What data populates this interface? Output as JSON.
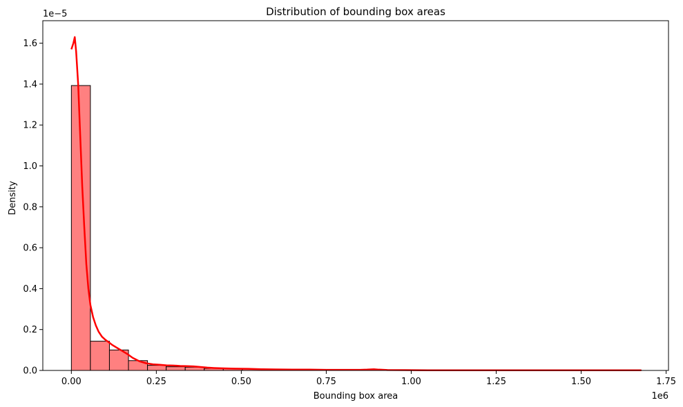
{
  "chart_data": {
    "type": "bar",
    "title": "Distribution of bounding box areas",
    "xlabel": "Bounding box area",
    "ylabel": "Density",
    "x_offset_text": "1e6",
    "y_offset_text": "1e−5",
    "xlim": [
      -0.084,
      1.757
    ],
    "ylim": [
      0,
      1.71
    ],
    "grid": false,
    "xticks": [
      0.0,
      0.25,
      0.5,
      0.75,
      1.0,
      1.25,
      1.5,
      1.75
    ],
    "xtick_labels": [
      "0.00",
      "0.25",
      "0.50",
      "0.75",
      "1.00",
      "1.25",
      "1.50",
      "1.75"
    ],
    "yticks": [
      0.0,
      0.2,
      0.4,
      0.6,
      0.8,
      1.0,
      1.2,
      1.4,
      1.6
    ],
    "ytick_labels": [
      "0.0",
      "0.2",
      "0.4",
      "0.6",
      "0.8",
      "1.0",
      "1.2",
      "1.4",
      "1.6"
    ],
    "bar_fill": "#ff8080",
    "bar_edge": "#000000",
    "kde_color": "#ff0000",
    "bins": [
      {
        "x0": 0.0,
        "x1": 0.056,
        "value": 1.393
      },
      {
        "x0": 0.056,
        "x1": 0.112,
        "value": 0.143
      },
      {
        "x0": 0.112,
        "x1": 0.168,
        "value": 0.1
      },
      {
        "x0": 0.168,
        "x1": 0.224,
        "value": 0.048
      },
      {
        "x0": 0.224,
        "x1": 0.279,
        "value": 0.025
      },
      {
        "x0": 0.279,
        "x1": 0.335,
        "value": 0.018
      },
      {
        "x0": 0.335,
        "x1": 0.391,
        "value": 0.016
      },
      {
        "x0": 0.391,
        "x1": 0.447,
        "value": 0.01
      },
      {
        "x0": 0.447,
        "x1": 0.503,
        "value": 0.009
      },
      {
        "x0": 0.503,
        "x1": 0.559,
        "value": 0.007
      },
      {
        "x0": 0.559,
        "x1": 0.615,
        "value": 0.005
      },
      {
        "x0": 0.615,
        "x1": 0.671,
        "value": 0.004
      },
      {
        "x0": 0.671,
        "x1": 0.727,
        "value": 0.004
      },
      {
        "x0": 0.727,
        "x1": 0.783,
        "value": 0.003
      },
      {
        "x0": 0.783,
        "x1": 0.838,
        "value": 0.002
      },
      {
        "x0": 0.838,
        "x1": 0.894,
        "value": 0.004
      },
      {
        "x0": 0.894,
        "x1": 0.95,
        "value": 0.002
      },
      {
        "x0": 0.95,
        "x1": 1.006,
        "value": 0.001
      },
      {
        "x0": 1.006,
        "x1": 1.062,
        "value": 0.001
      },
      {
        "x0": 1.062,
        "x1": 1.118,
        "value": 0.001
      },
      {
        "x0": 1.118,
        "x1": 1.174,
        "value": 0.001
      },
      {
        "x0": 1.174,
        "x1": 1.23,
        "value": 0.001
      },
      {
        "x0": 1.23,
        "x1": 1.286,
        "value": 0.001
      },
      {
        "x0": 1.286,
        "x1": 1.342,
        "value": 0.001
      },
      {
        "x0": 1.342,
        "x1": 1.397,
        "value": 0.001
      },
      {
        "x0": 1.397,
        "x1": 1.453,
        "value": 0.001
      },
      {
        "x0": 1.453,
        "x1": 1.509,
        "value": 0.001
      },
      {
        "x0": 1.509,
        "x1": 1.565,
        "value": 0.001
      },
      {
        "x0": 1.565,
        "x1": 1.621,
        "value": 0.001
      },
      {
        "x0": 1.621,
        "x1": 1.677,
        "value": 0.001
      }
    ],
    "kde": [
      [
        0.0,
        1.57
      ],
      [
        0.006,
        1.6
      ],
      [
        0.01,
        1.63
      ],
      [
        0.014,
        1.56
      ],
      [
        0.02,
        1.4
      ],
      [
        0.026,
        1.15
      ],
      [
        0.032,
        0.9
      ],
      [
        0.038,
        0.7
      ],
      [
        0.044,
        0.52
      ],
      [
        0.05,
        0.4
      ],
      [
        0.056,
        0.32
      ],
      [
        0.064,
        0.26
      ],
      [
        0.072,
        0.22
      ],
      [
        0.08,
        0.19
      ],
      [
        0.09,
        0.165
      ],
      [
        0.1,
        0.15
      ],
      [
        0.11,
        0.138
      ],
      [
        0.12,
        0.125
      ],
      [
        0.135,
        0.11
      ],
      [
        0.15,
        0.095
      ],
      [
        0.165,
        0.08
      ],
      [
        0.18,
        0.062
      ],
      [
        0.2,
        0.045
      ],
      [
        0.22,
        0.035
      ],
      [
        0.24,
        0.03
      ],
      [
        0.26,
        0.028
      ],
      [
        0.28,
        0.025
      ],
      [
        0.3,
        0.024
      ],
      [
        0.32,
        0.022
      ],
      [
        0.34,
        0.021
      ],
      [
        0.36,
        0.02
      ],
      [
        0.38,
        0.017
      ],
      [
        0.4,
        0.014
      ],
      [
        0.42,
        0.012
      ],
      [
        0.45,
        0.01
      ],
      [
        0.48,
        0.009
      ],
      [
        0.52,
        0.008
      ],
      [
        0.56,
        0.006
      ],
      [
        0.6,
        0.005
      ],
      [
        0.65,
        0.004
      ],
      [
        0.7,
        0.004
      ],
      [
        0.75,
        0.003
      ],
      [
        0.8,
        0.003
      ],
      [
        0.85,
        0.003
      ],
      [
        0.87,
        0.004
      ],
      [
        0.89,
        0.006
      ],
      [
        0.905,
        0.004
      ],
      [
        0.93,
        0.002
      ],
      [
        0.98,
        0.0015
      ],
      [
        1.05,
        0.001
      ],
      [
        1.15,
        0.001
      ],
      [
        1.25,
        0.001
      ],
      [
        1.35,
        0.001
      ],
      [
        1.45,
        0.001
      ],
      [
        1.55,
        0.001
      ],
      [
        1.677,
        0.001
      ]
    ]
  }
}
